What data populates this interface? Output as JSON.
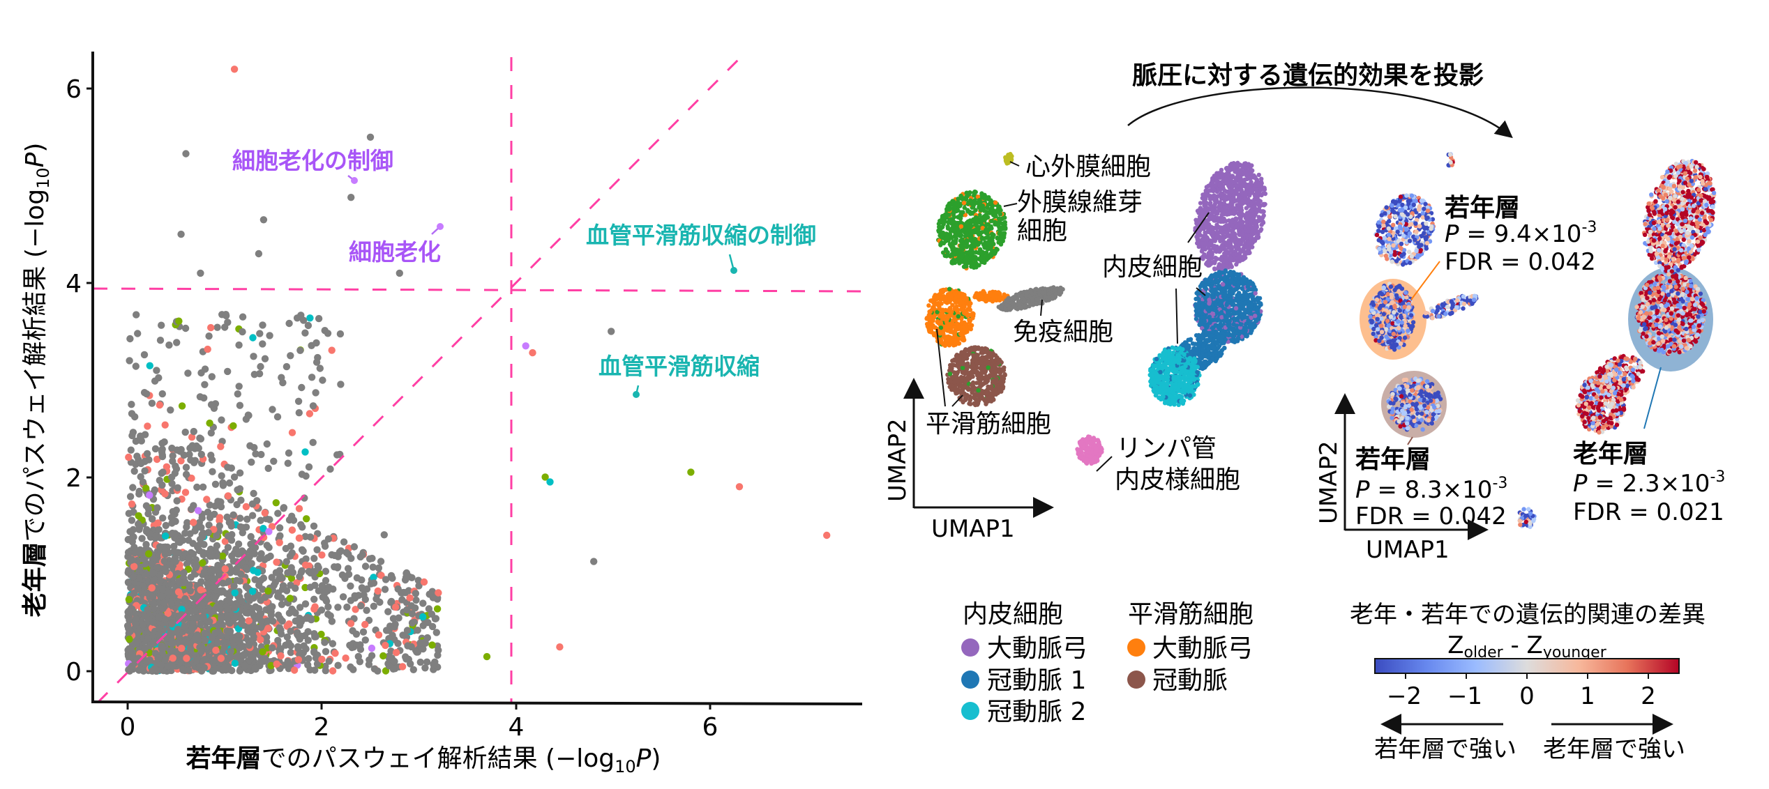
{
  "chart_data": [
    {
      "type": "scatter",
      "title": "",
      "xlabel_bold": "若年層",
      "xlabel_rest": "でのパスウェイ解析結果 (−log",
      "xlabel_sub": "10",
      "xlabel_end": "P)",
      "ylabel_bold": "老年層",
      "ylabel_rest": "でのパスウェイ解析結果 (−log",
      "ylabel_sub": "10",
      "ylabel_end": "P)",
      "xlim": [
        -0.4,
        7.5
      ],
      "ylim": [
        -0.35,
        6.5
      ],
      "xticks": [
        0,
        2,
        4,
        6
      ],
      "yticks": [
        0,
        2,
        4,
        6
      ],
      "grid": false,
      "threshold_lines": {
        "x": 3.95,
        "y": 3.93,
        "diagonal": "y = x"
      },
      "series_colors": {
        "other": "#7f7f7f",
        "salmon": "#f8766d",
        "green": "#7cae00",
        "cyan": "#00bfc4",
        "purple": "#c77cff"
      },
      "dense_cloud": {
        "description": "dense pathway cloud with x 0–2.5, y 0–2.6",
        "n_points": 2600
      },
      "notable_points": [
        {
          "x": 1.1,
          "y": 6.2,
          "color": "salmon"
        },
        {
          "x": 2.5,
          "y": 5.5,
          "color": "other"
        },
        {
          "x": 0.6,
          "y": 5.33,
          "color": "other"
        },
        {
          "x": 2.3,
          "y": 4.88,
          "color": "other"
        },
        {
          "x": 1.4,
          "y": 4.65,
          "color": "other"
        },
        {
          "x": 0.55,
          "y": 4.5,
          "color": "other"
        },
        {
          "x": 1.35,
          "y": 4.3,
          "color": "other"
        },
        {
          "x": 2.8,
          "y": 4.1,
          "color": "other"
        },
        {
          "x": 0.75,
          "y": 4.1,
          "color": "other"
        },
        {
          "x": 4.98,
          "y": 3.5,
          "color": "other"
        },
        {
          "x": 4.1,
          "y": 3.35,
          "color": "purple"
        },
        {
          "x": 4.17,
          "y": 3.28,
          "color": "salmon"
        },
        {
          "x": 4.3,
          "y": 2.0,
          "color": "green"
        },
        {
          "x": 4.35,
          "y": 1.95,
          "color": "cyan"
        },
        {
          "x": 5.8,
          "y": 2.05,
          "color": "green"
        },
        {
          "x": 6.3,
          "y": 1.9,
          "color": "salmon"
        },
        {
          "x": 7.2,
          "y": 1.4,
          "color": "salmon"
        },
        {
          "x": 4.8,
          "y": 1.13,
          "color": "other"
        },
        {
          "x": 4.45,
          "y": 0.25,
          "color": "salmon"
        },
        {
          "x": 3.7,
          "y": 0.15,
          "color": "green"
        }
      ],
      "annotations": [
        {
          "label": "細胞老化の制御",
          "x": 2.33,
          "y": 5.02,
          "color": "#a855f7"
        },
        {
          "label": "細胞老化",
          "x": 3.23,
          "y": 4.57,
          "color": "#a855f7"
        },
        {
          "label": "血管平滑筋収縮の制御",
          "x": 6.24,
          "y": 4.13,
          "color": "#19b5b0"
        },
        {
          "label": "血管平滑筋収縮",
          "x": 5.24,
          "y": 2.85,
          "color": "#19b5b0"
        }
      ]
    },
    {
      "type": "scatter",
      "title": "UMAP cell types",
      "xlabel": "UMAP1",
      "ylabel": "UMAP2",
      "clusters": [
        {
          "label": "心外膜細胞",
          "color": "#bcbd22"
        },
        {
          "label": "外膜線維芽細胞",
          "color": "#2ca02c"
        },
        {
          "label": "平滑筋細胞 (大動脈弓)",
          "color": "#ff7f0e"
        },
        {
          "label": "平滑筋細胞 (冠動脈)",
          "color": "#8c564b"
        },
        {
          "label": "免疫細胞",
          "color": "#7f7f7f"
        },
        {
          "label": "内皮細胞 (大動脈弓)",
          "color": "#9467bd"
        },
        {
          "label": "内皮細胞 (冠動脈 1)",
          "color": "#1f77b4"
        },
        {
          "label": "内皮細胞 (冠動脈 2)",
          "color": "#17becf"
        },
        {
          "label": "リンパ管内皮様細胞",
          "color": "#e377c2"
        }
      ]
    },
    {
      "type": "scatter",
      "title": "脈圧に対する遺伝的効果を投影",
      "xlabel": "UMAP1",
      "ylabel": "UMAP2",
      "colorbar": {
        "label": "Z_older - Z_younger",
        "range": [
          -2.5,
          2.5
        ],
        "ticks": [
          -2,
          -1,
          0,
          1,
          2
        ],
        "cmap": "coolwarm"
      },
      "highlights": [
        {
          "group": "若年層",
          "cluster": "平滑筋細胞 (大動脈弓)",
          "P": "9.4×10^-3",
          "FDR": 0.042
        },
        {
          "group": "若年層",
          "cluster": "平滑筋細胞 (冠動脈)",
          "P": "8.3×10^-3",
          "FDR": 0.042
        },
        {
          "group": "老年層",
          "cluster": "内皮細胞 (冠動脈 1)",
          "P": "2.3×10^-3",
          "FDR": 0.021
        }
      ]
    }
  ],
  "scatter": {
    "y_tick_labels": [
      "0",
      "2",
      "4",
      "6"
    ],
    "x_tick_labels": [
      "0",
      "2",
      "4",
      "6"
    ],
    "xlabel_bold": "若年層",
    "xlabel_rest": "でのパスウェイ解析結果 (−log",
    "xlabel_sub": "10",
    "xlabel_end": "P",
    "xlabel_close": ")",
    "ylabel_bold": "老年層",
    "ylabel_rest": "でのパスウェイ解析結果 (−log",
    "ylabel_sub": "10",
    "ylabel_end": "P",
    "ylabel_close": ")",
    "annotations": [
      {
        "label": "細胞老化の制御"
      },
      {
        "label": "細胞老化"
      },
      {
        "label": "血管平滑筋収縮の制御"
      },
      {
        "label": "血管平滑筋収縮"
      }
    ]
  },
  "umap_left": {
    "labels": {
      "epicardial": "心外膜細胞",
      "fibro_1": "外膜線維芽",
      "fibro_2": "細胞",
      "endothelial": "内皮細胞",
      "immune": "免疫細胞",
      "smooth_muscle": "平滑筋細胞",
      "lymph_1": "リンパ管",
      "lymph_2": "内皮様細胞"
    },
    "axis_x": "UMAP1",
    "axis_y": "UMAP2"
  },
  "projection": {
    "title": "脈圧に対する遺伝的効果を投影",
    "young_top": {
      "group": "若年層",
      "p_prefix": "P",
      "p_value": " = 9.4×10",
      "p_exp": "-3",
      "fdr": "FDR = 0.042"
    },
    "young_bottom": {
      "group": "若年層",
      "p_prefix": "P",
      "p_value": " = 8.3×10",
      "p_exp": "-3",
      "fdr": "FDR = 0.042"
    },
    "old": {
      "group": "老年層",
      "p_prefix": "P",
      "p_value": " = 2.3×10",
      "p_exp": "-3",
      "fdr": "FDR = 0.021"
    },
    "axis_x": "UMAP1",
    "axis_y": "UMAP2"
  },
  "legend": {
    "col1_header": "内皮細胞",
    "col1_items": [
      {
        "label": "大動脈弓",
        "color": "#9467bd"
      },
      {
        "label": "冠動脈 1",
        "color": "#1f77b4"
      },
      {
        "label": "冠動脈 2",
        "color": "#17becf"
      }
    ],
    "col2_header": "平滑筋細胞",
    "col2_items": [
      {
        "label": "大動脈弓",
        "color": "#ff7f0e"
      },
      {
        "label": "冠動脈",
        "color": "#8c564b"
      }
    ]
  },
  "colorbar": {
    "title": "老年・若年での遺伝的関連の差異",
    "z_main1": "Z",
    "z_sub1": "older",
    "z_dash": " - ",
    "z_main2": "Z",
    "z_sub2": "younger",
    "ticks": [
      "−2",
      "−1",
      "0",
      "1",
      "2"
    ],
    "left_label": "若年層で強い",
    "right_label": "老年層で強い",
    "colors": [
      "#3b4cc0",
      "#7396f5",
      "#b0cbfc",
      "#dddcdc",
      "#f6bfa5",
      "#ee8468",
      "#b40426"
    ]
  }
}
